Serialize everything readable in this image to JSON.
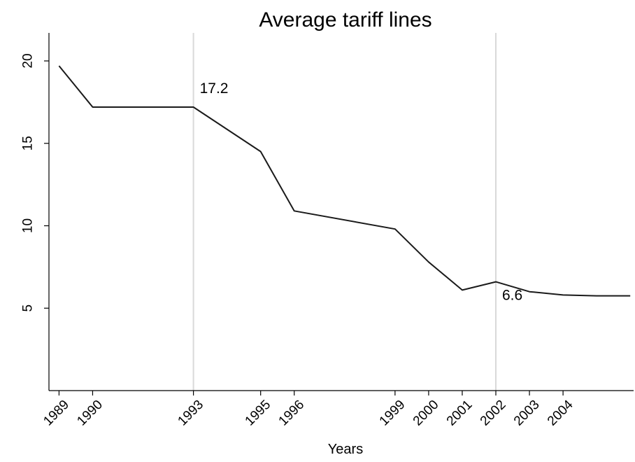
{
  "chart_data": {
    "type": "line",
    "title": "Average tariff lines",
    "xlabel": "Years",
    "ylabel": "",
    "xlim": [
      1988.7,
      2006.1
    ],
    "ylim": [
      0,
      21.7
    ],
    "x_ticks": [
      1989,
      1990,
      1993,
      1995,
      1996,
      1999,
      2000,
      2001,
      2002,
      2003,
      2004
    ],
    "y_ticks": [
      5,
      10,
      15,
      20
    ],
    "grid": false,
    "legend": "none",
    "vertical_lines": [
      1993,
      2002
    ],
    "series": [
      {
        "x": [
          1989,
          1990,
          1993,
          1995,
          1996,
          1999,
          2000,
          2001,
          2002,
          2003,
          2004,
          2005,
          2006
        ],
        "y": [
          19.7,
          17.2,
          17.2,
          14.5,
          10.9,
          9.8,
          7.8,
          6.1,
          6.6,
          6.0,
          5.8,
          5.75,
          5.75
        ]
      }
    ],
    "annotations": [
      {
        "x": 1993,
        "y": 17.2,
        "text": "17.2"
      },
      {
        "x": 2002,
        "y": 6.6,
        "text": "6.6"
      }
    ]
  },
  "colors": {
    "line": "#1a1a1a",
    "reference_line": "#d9d9d9",
    "axis": "#000000",
    "background": "#ffffff"
  }
}
